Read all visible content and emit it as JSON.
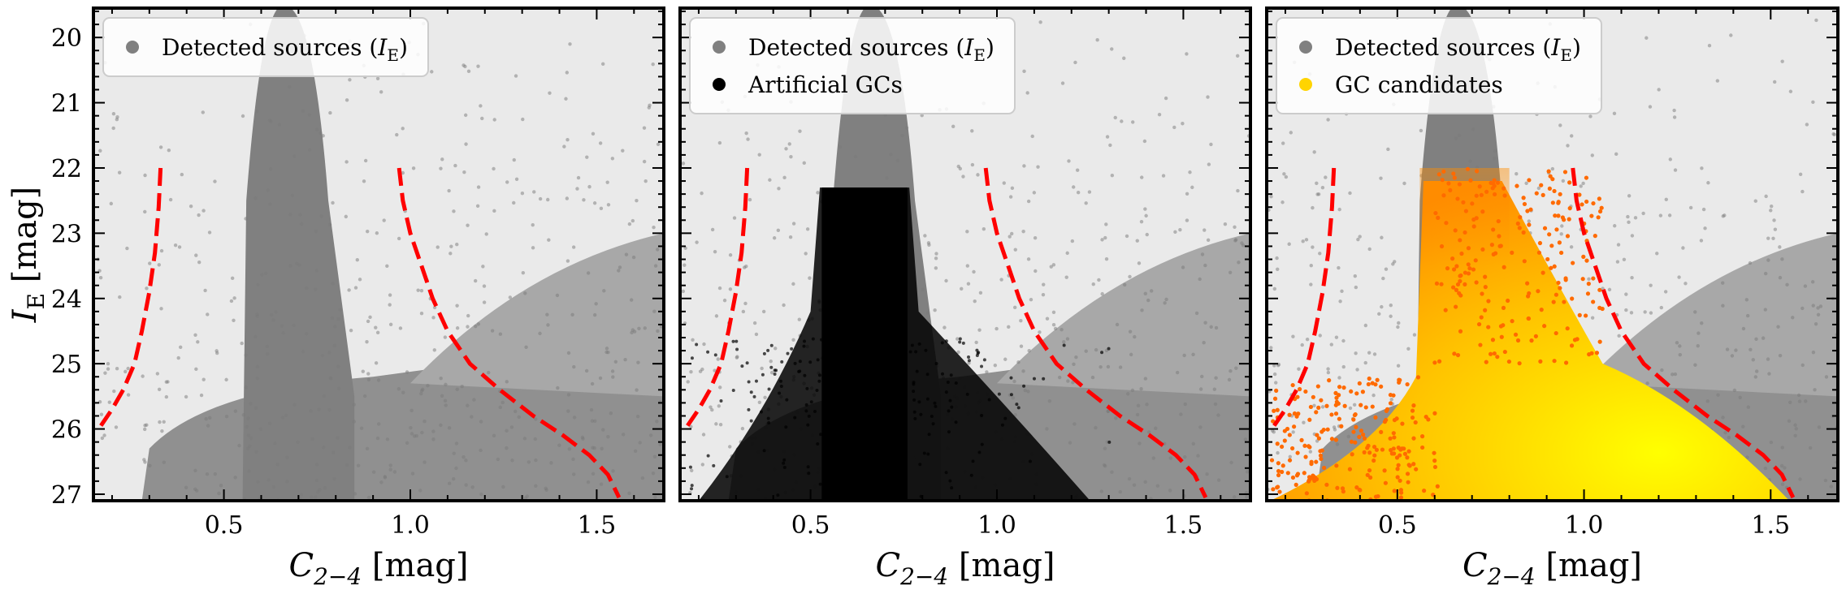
{
  "chart_data": [
    {
      "type": "scatter",
      "xlabel": "C",
      "xlabel_sub": "2−4",
      "xlabel_unit": " [mag]",
      "ylabel": "I",
      "ylabel_sub": "E",
      "ylabel_unit": " [mag]",
      "xlim": [
        0.15,
        1.68
      ],
      "ylim": [
        27.1,
        19.55
      ],
      "x_ticks": [
        "0.5",
        "1.0",
        "1.5"
      ],
      "y_ticks": [
        "20",
        "21",
        "22",
        "23",
        "24",
        "25",
        "26",
        "27"
      ],
      "legend_position": "top-left",
      "legend": [
        {
          "label": "Detected sources (",
          "italic": "I",
          "sub": "E",
          "tail": ")",
          "color": "#808080"
        }
      ],
      "series": [
        {
          "name": "Detected sources (IE)",
          "color": "#808080"
        }
      ],
      "selection_boundaries": {
        "color": "#ff0000",
        "left": {
          "x": [
            0.33,
            0.325,
            0.315,
            0.3,
            0.28,
            0.26,
            0.23,
            0.2,
            0.17
          ],
          "y": [
            22.0,
            22.6,
            23.3,
            23.9,
            24.5,
            25.0,
            25.4,
            25.7,
            25.95
          ]
        },
        "right": {
          "x": [
            0.97,
            0.98,
            1.0,
            1.03,
            1.06,
            1.1,
            1.16,
            1.24,
            1.33,
            1.41,
            1.48,
            1.53,
            1.56
          ],
          "y": [
            22.0,
            22.5,
            23.0,
            23.5,
            24.0,
            24.5,
            25.0,
            25.4,
            25.8,
            26.1,
            26.4,
            26.7,
            27.05
          ]
        }
      }
    },
    {
      "type": "scatter",
      "xlabel": "C",
      "xlabel_sub": "2−4",
      "xlabel_unit": " [mag]",
      "ylabel": "",
      "xlim": [
        0.15,
        1.68
      ],
      "ylim": [
        27.1,
        19.55
      ],
      "x_ticks": [
        "0.5",
        "1.0",
        "1.5"
      ],
      "y_ticks": [],
      "legend_position": "top-left",
      "legend": [
        {
          "label": "Detected sources (",
          "italic": "I",
          "sub": "E",
          "tail": ")",
          "color": "#808080"
        },
        {
          "label": "Artificial GCs",
          "italic": "",
          "sub": "",
          "tail": "",
          "color": "#000000"
        }
      ],
      "series": [
        {
          "name": "Detected sources (IE)",
          "color": "#808080"
        },
        {
          "name": "Artificial GCs",
          "color": "#000000"
        }
      ],
      "selection_boundaries": {
        "color": "#ff0000",
        "left": {
          "x": [
            0.33,
            0.325,
            0.315,
            0.3,
            0.28,
            0.26,
            0.23,
            0.2,
            0.17
          ],
          "y": [
            22.0,
            22.6,
            23.3,
            23.9,
            24.5,
            25.0,
            25.4,
            25.7,
            25.95
          ]
        },
        "right": {
          "x": [
            0.97,
            0.98,
            1.0,
            1.03,
            1.06,
            1.1,
            1.16,
            1.24,
            1.33,
            1.41,
            1.48,
            1.53,
            1.56
          ],
          "y": [
            22.0,
            22.5,
            23.0,
            23.5,
            24.0,
            24.5,
            25.0,
            25.4,
            25.8,
            26.1,
            26.4,
            26.7,
            27.05
          ]
        }
      }
    },
    {
      "type": "scatter",
      "xlabel": "C",
      "xlabel_sub": "2−4",
      "xlabel_unit": " [mag]",
      "ylabel": "",
      "xlim": [
        0.15,
        1.68
      ],
      "ylim": [
        27.1,
        19.55
      ],
      "x_ticks": [
        "0.5",
        "1.0",
        "1.5"
      ],
      "y_ticks": [],
      "legend_position": "top-left",
      "legend": [
        {
          "label": "Detected sources (",
          "italic": "I",
          "sub": "E",
          "tail": ")",
          "color": "#808080"
        },
        {
          "label": "GC candidates",
          "italic": "",
          "sub": "",
          "tail": "",
          "color": "#ffd400"
        }
      ],
      "series": [
        {
          "name": "Detected sources (IE)",
          "color": "#808080"
        },
        {
          "name": "GC candidates",
          "color": "#ffd400",
          "outlier_color": "#ff6a00"
        }
      ],
      "selection_boundaries": {
        "color": "#ff0000",
        "left": {
          "x": [
            0.33,
            0.325,
            0.315,
            0.3,
            0.28,
            0.26,
            0.23,
            0.2,
            0.17
          ],
          "y": [
            22.0,
            22.6,
            23.3,
            23.9,
            24.5,
            25.0,
            25.4,
            25.7,
            25.95
          ]
        },
        "right": {
          "x": [
            0.97,
            0.98,
            1.0,
            1.03,
            1.06,
            1.1,
            1.16,
            1.24,
            1.33,
            1.41,
            1.48,
            1.53,
            1.56
          ],
          "y": [
            22.0,
            22.5,
            23.0,
            23.5,
            24.0,
            24.5,
            25.0,
            25.4,
            25.8,
            26.1,
            26.4,
            26.7,
            27.05
          ]
        }
      }
    }
  ]
}
